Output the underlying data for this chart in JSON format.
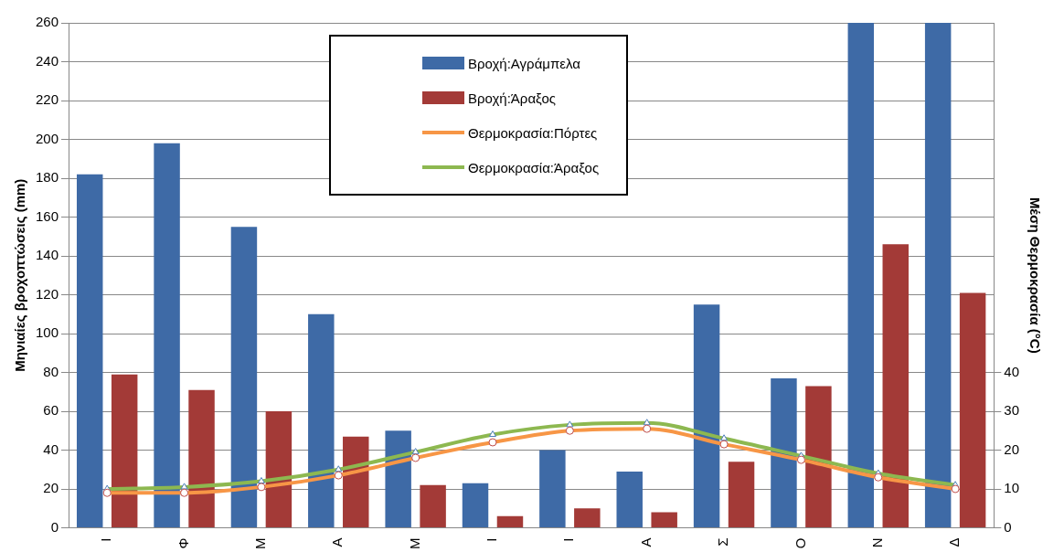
{
  "chart_data": {
    "type": "bar",
    "ylabel": "Μηνιαίες βροχοπτώσεις (mm)",
    "y2label": "Μέση Θερμοκρασία (°C)",
    "categories": [
      "Ι",
      "Φ",
      "Μ",
      "Α",
      "Μ",
      "Ι",
      "Ι",
      "Α",
      "Σ",
      "Ο",
      "Ν",
      "Δ"
    ],
    "series": [
      {
        "name": "Βροχή:Αγράμπελα",
        "color": "#3e6aa6",
        "values": [
          182,
          198,
          155,
          110,
          50,
          23,
          40,
          29,
          115,
          77,
          260,
          260
        ]
      },
      {
        "name": "Βροχή:Άραξος",
        "color": "#a33a37",
        "values": [
          79,
          71,
          60,
          47,
          22,
          6,
          10,
          8,
          34,
          73,
          146,
          121
        ]
      },
      {
        "name": "Θερμοκρασία:Πόρτες",
        "type": "line",
        "axis": "y2",
        "marker": "circle",
        "color": "#f79646",
        "values": [
          9,
          9,
          10.5,
          13.5,
          18,
          22,
          25,
          25.5,
          21.5,
          17.5,
          13,
          10
        ]
      },
      {
        "name": "Θερμοκρασία:Άραξος",
        "type": "line",
        "axis": "y2",
        "marker": "triangle",
        "color": "#8db850",
        "values": [
          10,
          10.5,
          12,
          15,
          19.5,
          24,
          26.5,
          27,
          23,
          18.5,
          14,
          11
        ]
      }
    ],
    "ylim": [
      0,
      260
    ],
    "yticks": [
      0,
      20,
      40,
      60,
      80,
      100,
      120,
      140,
      160,
      180,
      200,
      220,
      240,
      260
    ],
    "y2lim": [
      0,
      130
    ],
    "y2ticks": [
      0,
      10,
      20,
      30,
      40
    ],
    "grid": "y",
    "legend": "top"
  }
}
